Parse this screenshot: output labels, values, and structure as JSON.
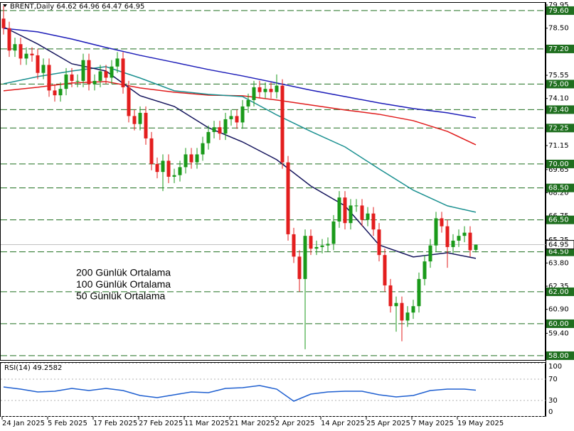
{
  "chart_data": [
    {
      "type": "candlestick",
      "title": "BRENT,Daily  64.62 64.96 64.47 64.95",
      "categories": [
        "24 Jan 2025",
        null,
        null,
        null,
        null,
        null,
        null,
        null,
        "5 Feb 2025",
        null,
        null,
        null,
        null,
        null,
        null,
        null,
        "17 Feb 2025",
        null,
        null,
        null,
        null,
        null,
        null,
        null,
        "27 Feb 2025",
        null,
        null,
        null,
        null,
        null,
        null,
        null,
        "11 Mar 2025",
        null,
        null,
        null,
        null,
        null,
        null,
        null,
        "21 Mar 2025",
        null,
        null,
        null,
        null,
        null,
        null,
        null,
        "2 Apr 2025",
        null,
        null,
        null,
        null,
        null,
        null,
        null,
        "14 Apr 2025",
        null,
        null,
        null,
        null,
        null,
        null,
        null,
        "25 Apr 2025",
        null,
        null,
        null,
        null,
        null,
        null,
        null,
        "7 May 2025",
        null,
        null,
        null,
        null,
        null,
        null,
        null,
        "19 May 2025",
        null,
        null,
        null
      ],
      "open": [
        79.1,
        78.5,
        77.1,
        77.5,
        76.6,
        76.9,
        76.8,
        75.7,
        76.2,
        74.6,
        74.3,
        74.7,
        75.6,
        75.2,
        75.2,
        76.5,
        75.0,
        75.2,
        75.8,
        75.4,
        76.1,
        76.6,
        74.8,
        73.0,
        72.5,
        73.2,
        71.6,
        70.0,
        69.5,
        70.2,
        69.2,
        69.3,
        69.8,
        70.6,
        70.1,
        70.6,
        71.3,
        72.0,
        72.3,
        71.9,
        72.8,
        73.0,
        72.6,
        73.6,
        74.0,
        74.8,
        74.5,
        74.7,
        74.5,
        74.9,
        70.1,
        65.6,
        64.2,
        62.8,
        65.5,
        64.7,
        64.8,
        64.9,
        65.0,
        66.4,
        67.9,
        66.3,
        67.4,
        67.4,
        66.5,
        66.9,
        65.9,
        64.3,
        62.4,
        61.1,
        61.3,
        60.2,
        60.7,
        61.1,
        62.8,
        63.9,
        64.9,
        66.6,
        66.1,
        64.8,
        65.2,
        65.5,
        65.7,
        64.62
      ],
      "high": [
        79.9,
        78.9,
        77.9,
        77.9,
        77.3,
        77.3,
        77.2,
        76.6,
        76.6,
        75.0,
        75.1,
        76.0,
        76.0,
        75.6,
        76.9,
        76.9,
        75.6,
        76.2,
        76.2,
        76.5,
        77.0,
        77.0,
        75.2,
        73.4,
        73.6,
        73.6,
        72.0,
        70.4,
        70.6,
        70.6,
        69.7,
        70.2,
        71.0,
        71.0,
        71.0,
        71.7,
        72.4,
        72.7,
        72.7,
        73.2,
        73.4,
        73.4,
        74.0,
        74.4,
        75.2,
        75.2,
        75.1,
        75.1,
        75.6,
        75.3,
        70.5,
        66.0,
        64.6,
        65.9,
        65.9,
        65.2,
        65.3,
        65.4,
        66.8,
        68.3,
        68.3,
        67.8,
        67.8,
        67.8,
        67.3,
        67.3,
        66.3,
        64.7,
        62.8,
        61.7,
        61.7,
        61.1,
        61.5,
        63.2,
        64.3,
        65.3,
        67.0,
        67.0,
        66.5,
        65.6,
        65.9,
        66.1,
        66.1,
        64.96
      ],
      "low": [
        78.1,
        76.7,
        76.7,
        76.2,
        76.2,
        76.4,
        75.3,
        75.3,
        74.2,
        73.9,
        73.9,
        74.3,
        74.8,
        74.8,
        74.8,
        74.6,
        74.6,
        74.8,
        75.0,
        75.0,
        75.7,
        74.4,
        72.6,
        72.1,
        72.1,
        71.2,
        69.6,
        69.1,
        68.3,
        68.8,
        68.8,
        68.9,
        69.4,
        69.7,
        69.7,
        70.2,
        70.9,
        71.6,
        71.5,
        71.5,
        72.4,
        72.2,
        72.2,
        73.2,
        73.6,
        74.1,
        74.1,
        74.1,
        74.1,
        69.7,
        65.2,
        63.8,
        62.0,
        58.4,
        64.3,
        64.3,
        64.4,
        64.5,
        64.6,
        66.0,
        65.9,
        65.9,
        67.0,
        66.1,
        66.1,
        65.5,
        63.9,
        62.0,
        60.7,
        59.5,
        58.9,
        59.8,
        60.3,
        60.7,
        62.4,
        63.5,
        64.5,
        65.7,
        63.5,
        64.4,
        64.8,
        65.1,
        64.2,
        64.47
      ],
      "close": [
        78.5,
        77.1,
        77.5,
        76.6,
        76.9,
        76.8,
        75.7,
        76.2,
        74.6,
        74.3,
        74.7,
        75.6,
        75.2,
        75.2,
        76.5,
        75.0,
        75.2,
        75.8,
        75.4,
        76.1,
        76.6,
        74.8,
        73.0,
        72.5,
        73.2,
        71.6,
        70.0,
        69.5,
        70.2,
        69.2,
        69.3,
        69.8,
        70.6,
        70.1,
        70.6,
        71.3,
        72.0,
        72.3,
        71.9,
        72.8,
        73.0,
        72.6,
        73.6,
        74.0,
        74.8,
        74.5,
        74.7,
        74.5,
        74.9,
        70.1,
        65.6,
        64.2,
        62.8,
        65.5,
        64.7,
        64.8,
        64.9,
        65.0,
        66.4,
        67.9,
        66.3,
        67.4,
        67.4,
        66.5,
        66.9,
        65.9,
        64.3,
        62.4,
        61.1,
        61.3,
        60.2,
        60.7,
        61.1,
        62.8,
        63.9,
        64.9,
        66.6,
        66.1,
        64.8,
        65.2,
        65.5,
        65.7,
        64.6,
        64.95
      ],
      "up_color": "#1a9a1a",
      "down_color": "#e31e1e",
      "series": [
        {
          "name": "200 Günlük Ortalama",
          "color": "#1c1cb8",
          "x": [
            0,
            6,
            12,
            18,
            24,
            30,
            36,
            42,
            48,
            54,
            60,
            66,
            72,
            78,
            83
          ],
          "values": [
            78.49,
            78.27,
            77.82,
            77.29,
            76.8,
            76.36,
            75.91,
            75.51,
            75.07,
            74.62,
            74.22,
            73.82,
            73.47,
            73.2,
            72.89
          ]
        },
        {
          "name": "100 Günlük Ortalama",
          "color": "#e01b1b",
          "x": [
            0,
            6,
            12,
            18,
            24,
            30,
            36,
            42,
            48,
            54,
            60,
            66,
            72,
            78,
            83
          ],
          "values": [
            74.58,
            74.8,
            75.07,
            75.16,
            74.76,
            74.49,
            74.31,
            74.27,
            74.0,
            73.69,
            73.38,
            73.11,
            72.71,
            72.04,
            71.2
          ]
        },
        {
          "name": "50 Günlük Ortalama",
          "color": "#1a9090",
          "x": [
            0,
            6,
            12,
            18,
            24,
            30,
            36,
            42,
            48,
            54,
            60,
            66,
            72,
            78,
            83
          ],
          "values": [
            75.02,
            75.47,
            75.82,
            76.09,
            75.38,
            74.58,
            74.36,
            74.22,
            73.07,
            72.04,
            71.07,
            69.69,
            68.36,
            67.38,
            66.98
          ]
        },
        {
          "color": "#14145c",
          "x": [
            0,
            6,
            12,
            18,
            24,
            30,
            36,
            42,
            48,
            54,
            60,
            66,
            72,
            78,
            83
          ],
          "values": [
            78.58,
            77.51,
            76.27,
            75.82,
            74.27,
            73.6,
            72.27,
            71.38,
            70.27,
            68.62,
            67.38,
            64.93,
            64.18,
            64.44,
            64.09
          ]
        }
      ],
      "ylim": [
        57.73,
        80.13
      ],
      "yticks": [
        79.95,
        {
          "value": 78.5,
          "label": "78.50"
        },
        75.55,
        {
          "value": 74.1,
          "label": "74.10"
        },
        71.15,
        69.65,
        {
          "value": 68.2,
          "label": "68.20"
        },
        66.75,
        65.25,
        {
          "value": 63.8,
          "label": "63.80"
        },
        62.35,
        {
          "value": 60.9,
          "label": "60.90"
        },
        {
          "value": 59.4,
          "label": "59.40"
        }
      ],
      "levels": [
        {
          "value": 79.6,
          "label": "79.60"
        },
        {
          "value": 77.2,
          "label": "77.20"
        },
        {
          "value": 75,
          "label": "75.00"
        },
        {
          "value": 73.4,
          "label": "73.40"
        },
        72.25,
        {
          "value": 70,
          "label": "70.00"
        },
        {
          "value": 68.5,
          "label": "68.50"
        },
        {
          "value": 66.5,
          "label": "66.50"
        },
        {
          "value": 64.5,
          "label": "64.50"
        },
        {
          "value": 62,
          "label": "62.00"
        },
        {
          "value": 60,
          "label": "60.00"
        },
        {
          "value": 58,
          "label": "58.00"
        }
      ],
      "level_color": "#1f6f1f",
      "last_price": 64.95
    },
    {
      "type": "line",
      "title": "RSI(14) 49.2582",
      "color": "#1e5fd0",
      "x": [
        0,
        3,
        6,
        9,
        12,
        15,
        18,
        21,
        24,
        27,
        30,
        33,
        36,
        39,
        42,
        45,
        48,
        51,
        54,
        57,
        60,
        63,
        66,
        69,
        72,
        75,
        78,
        81,
        83
      ],
      "values": [
        55.3,
        51.3,
        46.0,
        47.3,
        52.7,
        48.7,
        52.7,
        48.7,
        39.3,
        35.3,
        40.7,
        46.0,
        44.7,
        52.7,
        54.0,
        58.0,
        51.3,
        28.7,
        42.0,
        46.0,
        47.3,
        47.3,
        40.7,
        36.7,
        39.3,
        48.7,
        51.3,
        51.3,
        49.2582
      ],
      "ylim": [
        0,
        100
      ],
      "yticks": [
        100,
        70,
        30,
        0
      ]
    }
  ]
}
